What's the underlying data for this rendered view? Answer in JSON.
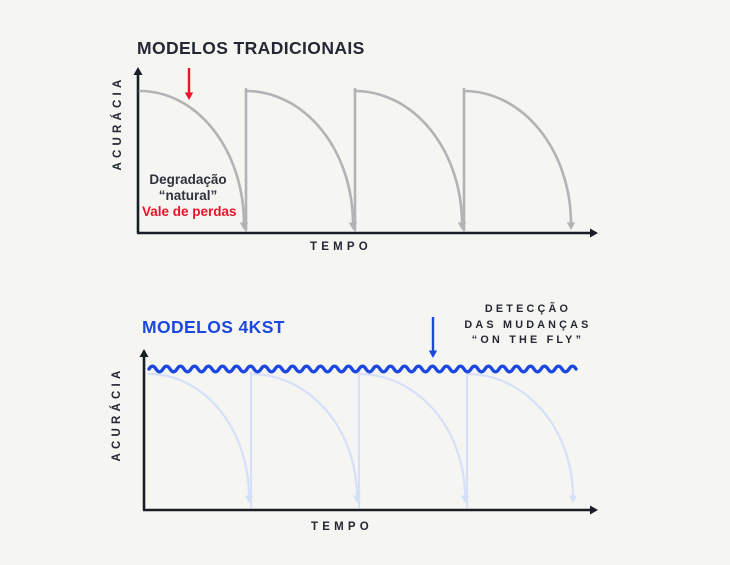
{
  "page": {
    "background": "#f5f5f2"
  },
  "colors": {
    "ink": "#232832",
    "axis": "#191d26",
    "gray_curve": "#b3b3b5",
    "red": "#eb1328",
    "blue": "#1c47e0",
    "light_blue": "#d7e0fa",
    "degradation_text": "#2d323c"
  },
  "charts": [
    {
      "id": "traditional",
      "title": "MODELOS TRADICIONAIS",
      "y_axis_label": "ACURÁCIA",
      "x_axis_label": "TEMPO",
      "cycles": 4,
      "curve_shape": "accuracy decays after each deploy, drops to loss valley, retrain jumps back up",
      "annotations": {
        "degradation": [
          "Degradação",
          "“natural”"
        ],
        "loss_valley": "Vale de perdas"
      }
    },
    {
      "id": "4kst",
      "title": "MODELOS 4KST",
      "y_axis_label": "ACURÁCIA",
      "x_axis_label": "TEMPO",
      "cycles": 4,
      "curve_shape": "accuracy held constant (wavy line) while faded decay curves show avoided degradation",
      "annotations": {
        "detection": [
          "DETECÇÃO",
          "DAS MUDANÇAS",
          "“ON THE FLY”"
        ]
      }
    }
  ]
}
